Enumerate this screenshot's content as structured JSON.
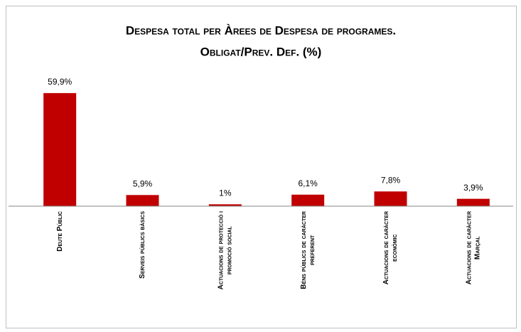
{
  "chart_data": {
    "type": "bar",
    "title": [
      "Despesa total per Àrees de Despesa de programes.",
      "Obligat/Prev. Def. (%)"
    ],
    "categories": [
      [
        "Deute Públic"
      ],
      [
        "Serveis públics bàsics"
      ],
      [
        "Actuacions de protecció i",
        "promoció social"
      ],
      [
        "Béns públics de caràcter",
        "preferent"
      ],
      [
        "Actuacions de caràcter",
        "econòmic"
      ],
      [
        "Actuacions de caràcter",
        "Marçal"
      ]
    ],
    "values": [
      59.9,
      5.9,
      1,
      6.1,
      7.8,
      3.9
    ],
    "value_labels": [
      "59,9%",
      "5,9%",
      "1%",
      "6,1%",
      "7,8%",
      "3,9%"
    ],
    "color": "#c00000",
    "ylim": [
      0,
      65
    ]
  }
}
